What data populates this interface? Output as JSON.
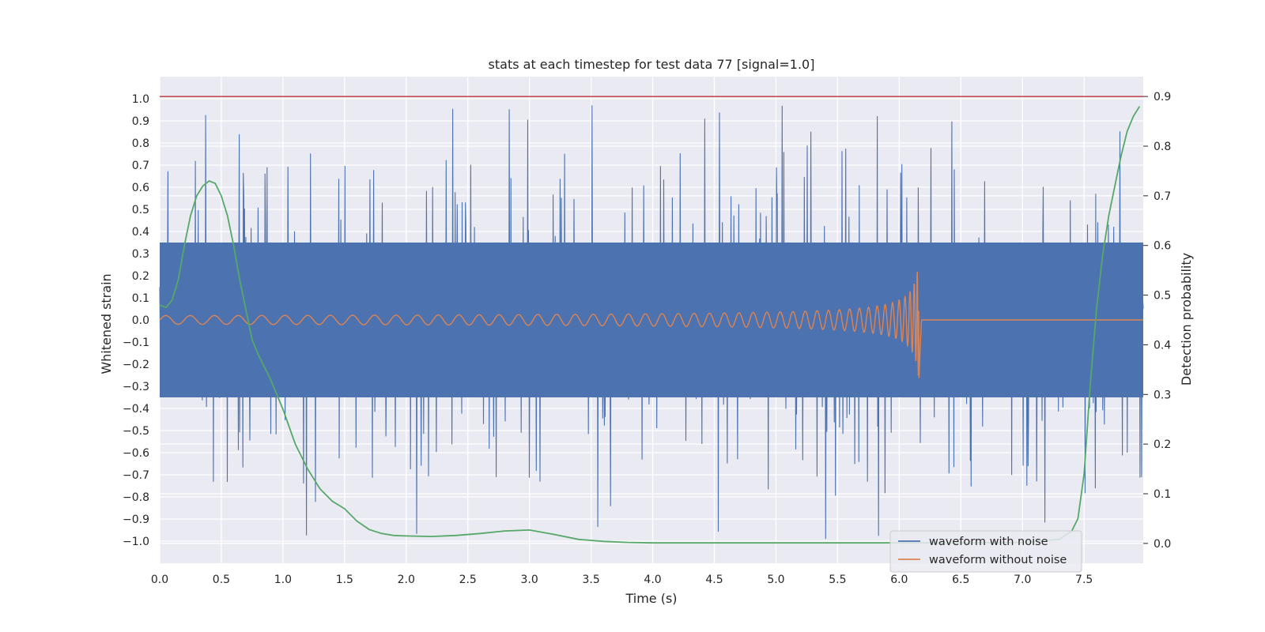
{
  "chart_data": {
    "type": "line",
    "title": "stats at each timestep for test data 77 [signal=1.0]",
    "xlabel": "Time (s)",
    "ylabel": "Whitened strain",
    "y2label": "Detection probability",
    "xlim": [
      0.0,
      7.98
    ],
    "ylim": [
      -1.1,
      1.1
    ],
    "y2lim": [
      -0.04,
      0.94
    ],
    "grid": true,
    "legend_position": "bottom-right",
    "background_color": "#eaeaf2",
    "x_ticks": [
      "0.0",
      "0.5",
      "1.0",
      "1.5",
      "2.0",
      "2.5",
      "3.0",
      "3.5",
      "4.0",
      "4.5",
      "5.0",
      "5.5",
      "6.0",
      "6.5",
      "7.0",
      "7.5"
    ],
    "y_ticks": [
      "1.0",
      "0.9",
      "0.8",
      "0.7",
      "0.6",
      "0.5",
      "0.4",
      "0.3",
      "0.2",
      "0.1",
      "0.0",
      "−0.1",
      "−0.2",
      "−0.3",
      "−0.4",
      "−0.5",
      "−0.6",
      "−0.7",
      "−0.8",
      "−0.9",
      "−1.0"
    ],
    "y2_ticks": [
      "0.9",
      "0.8",
      "0.7",
      "0.6",
      "0.5",
      "0.4",
      "0.3",
      "0.2",
      "0.1",
      "0.0"
    ],
    "threshold": {
      "y2": 0.9,
      "color": "#c44e52"
    },
    "series": [
      {
        "name": "waveform with noise",
        "color": "#4c72b0",
        "axis": "left",
        "noise_envelope": {
          "typical_max": 0.35,
          "typical_min": -0.35,
          "spike_max": 0.98,
          "spike_min": -1.0,
          "x_range": [
            0.0,
            7.98
          ]
        }
      },
      {
        "name": "waveform without noise",
        "color": "#dd8452",
        "axis": "left",
        "chirp": {
          "t_merger": 6.16,
          "amp_early": 0.01,
          "amp_peak": 0.31,
          "amp_min": -0.27,
          "freq_start": 5,
          "ringdown_end": 6.18,
          "flat_after": 0.0
        }
      },
      {
        "name": "",
        "color": "#55a868",
        "axis": "right",
        "x": [
          0.0,
          0.05,
          0.1,
          0.15,
          0.2,
          0.25,
          0.3,
          0.35,
          0.4,
          0.45,
          0.5,
          0.55,
          0.6,
          0.65,
          0.7,
          0.75,
          0.8,
          0.9,
          1.0,
          1.1,
          1.2,
          1.3,
          1.4,
          1.5,
          1.6,
          1.7,
          1.8,
          1.9,
          2.0,
          2.2,
          2.4,
          2.6,
          2.8,
          3.0,
          3.2,
          3.4,
          3.6,
          3.8,
          4.0,
          4.5,
          5.0,
          5.5,
          6.0,
          6.5,
          7.0,
          7.3,
          7.4,
          7.45,
          7.5,
          7.55,
          7.6,
          7.65,
          7.7,
          7.75,
          7.8,
          7.85,
          7.9,
          7.95
        ],
        "values": [
          0.48,
          0.475,
          0.49,
          0.53,
          0.6,
          0.66,
          0.7,
          0.72,
          0.73,
          0.725,
          0.7,
          0.66,
          0.6,
          0.53,
          0.47,
          0.41,
          0.38,
          0.33,
          0.27,
          0.2,
          0.15,
          0.11,
          0.085,
          0.07,
          0.045,
          0.028,
          0.02,
          0.016,
          0.015,
          0.014,
          0.016,
          0.02,
          0.025,
          0.027,
          0.018,
          0.008,
          0.004,
          0.002,
          0.001,
          0.001,
          0.001,
          0.001,
          0.001,
          0.001,
          0.002,
          0.008,
          0.025,
          0.05,
          0.14,
          0.32,
          0.47,
          0.58,
          0.66,
          0.72,
          0.78,
          0.83,
          0.86,
          0.88
        ]
      }
    ]
  },
  "legend": {
    "items": [
      {
        "label": "waveform with noise",
        "color": "#4c72b0"
      },
      {
        "label": "waveform without noise",
        "color": "#dd8452"
      }
    ]
  }
}
